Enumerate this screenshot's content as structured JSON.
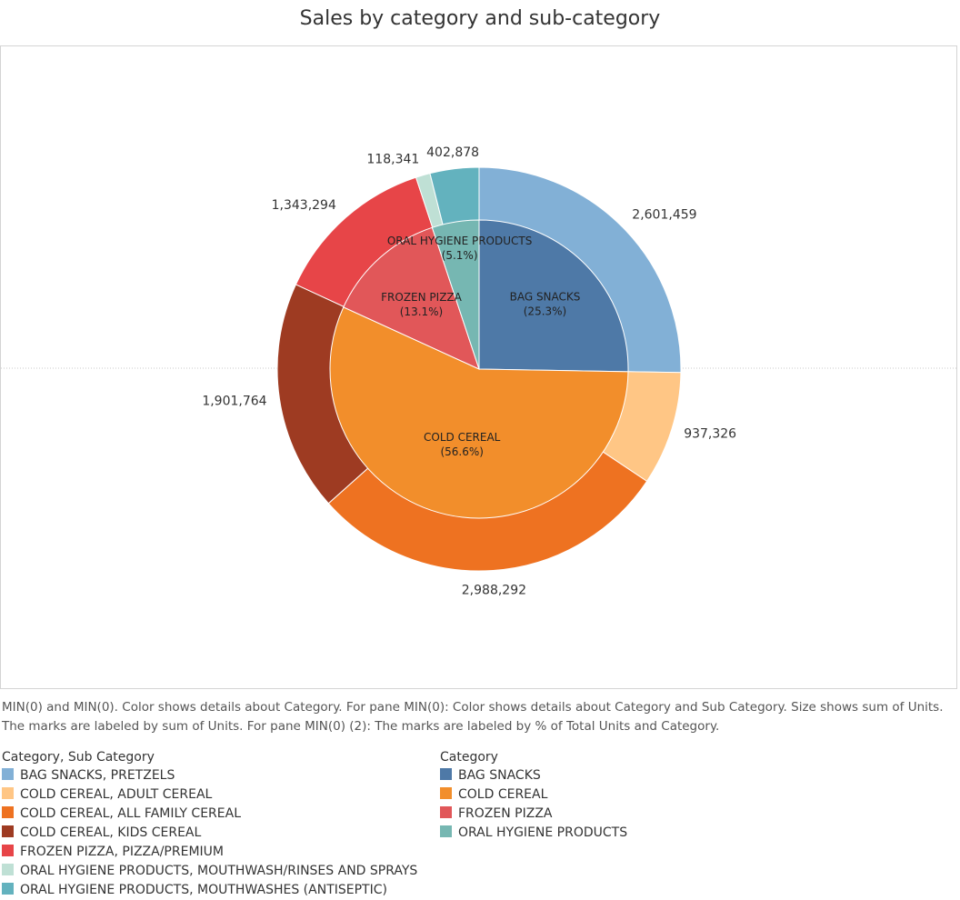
{
  "chart_data": {
    "type": "pie",
    "title": "Sales by category and sub-category",
    "caption": "MIN(0) and MIN(0).  Color shows details about Category.  For pane MIN(0):  Color shows details about Category and Sub Category.  Size shows sum of Units.  The marks are labeled by sum of Units.  For pane MIN(0) (2):  The marks are labeled by % of Total Units and Category.",
    "outer_ring": {
      "legend_title": "Category, Sub Category",
      "slices": [
        {
          "name": "BAG SNACKS, PRETZELS",
          "value": 2601459,
          "label": "2,601,459",
          "color": "#82b0d6"
        },
        {
          "name": "COLD CEREAL, ADULT CEREAL",
          "value": 937326,
          "label": "937,326",
          "color": "#ffc685"
        },
        {
          "name": "COLD CEREAL, ALL FAMILY CEREAL",
          "value": 2988292,
          "label": "2,988,292",
          "color": "#ee7221"
        },
        {
          "name": "COLD CEREAL, KIDS CEREAL",
          "value": 1901764,
          "label": "1,901,764",
          "color": "#9e3b22"
        },
        {
          "name": "FROZEN PIZZA, PIZZA/PREMIUM",
          "value": 1343294,
          "label": "1,343,294",
          "color": "#e74548"
        },
        {
          "name": "ORAL HYGIENE PRODUCTS, MOUTHWASH/RINSES AND SPRAYS",
          "value": 118341,
          "label": "118,341",
          "color": "#bfe0d5"
        },
        {
          "name": "ORAL HYGIENE PRODUCTS, MOUTHWASHES (ANTISEPTIC)",
          "value": 402878,
          "label": "402,878",
          "color": "#63b2be"
        }
      ]
    },
    "inner_pie": {
      "legend_title": "Category",
      "slices": [
        {
          "name": "BAG SNACKS",
          "percent": 25.3,
          "label": "(25.3%)",
          "color": "#4e79a7"
        },
        {
          "name": "COLD CEREAL",
          "percent": 56.6,
          "label": "(56.6%)",
          "color": "#f28e2b"
        },
        {
          "name": "FROZEN PIZZA",
          "percent": 13.1,
          "label": "(13.1%)",
          "color": "#e15759"
        },
        {
          "name": "ORAL HYGIENE PRODUCTS",
          "percent": 5.1,
          "label": "(5.1%)",
          "color": "#76b7b2"
        }
      ]
    }
  }
}
